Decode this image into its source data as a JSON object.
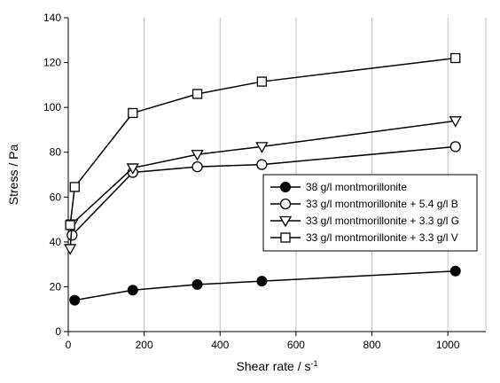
{
  "chart_data": {
    "type": "line",
    "xlabel": "Shear rate / s",
    "xlabel_superscript": "-1",
    "ylabel": "Stress / Pa",
    "xlim": [
      0,
      1100
    ],
    "ylim": [
      0,
      140
    ],
    "xticks": [
      0,
      200,
      400,
      600,
      800,
      1000
    ],
    "yticks": [
      0,
      20,
      40,
      60,
      80,
      100,
      120,
      140
    ],
    "grid": "vertical",
    "legend_position": "center-right",
    "series": [
      {
        "name": "38 g/l montmorillonite",
        "marker": "filled-circle",
        "color": "#000000",
        "x": [
          17,
          170,
          340,
          510,
          1020
        ],
        "y": [
          14,
          18.5,
          21,
          22.5,
          27
        ]
      },
      {
        "name": "33 g/l montmorillonite + 5.4 g/l B",
        "marker": "open-circle",
        "color": "#000000",
        "x": [
          10,
          170,
          340,
          510,
          1020
        ],
        "y": [
          43,
          71,
          73.5,
          74.5,
          82.5
        ]
      },
      {
        "name": "33 g/l montmorillonite + 3.3 g/l G",
        "marker": "open-triangle-down",
        "color": "#000000",
        "x": [
          5,
          10,
          170,
          340,
          510,
          1020
        ],
        "y": [
          37,
          48,
          73,
          79,
          82.5,
          94
        ]
      },
      {
        "name": "33 g/l montmorillonite + 3.3 g/l V",
        "marker": "open-square",
        "color": "#000000",
        "x": [
          5,
          17,
          170,
          340,
          510,
          1020
        ],
        "y": [
          47.5,
          64.5,
          97.5,
          106,
          111.5,
          122
        ]
      }
    ]
  }
}
